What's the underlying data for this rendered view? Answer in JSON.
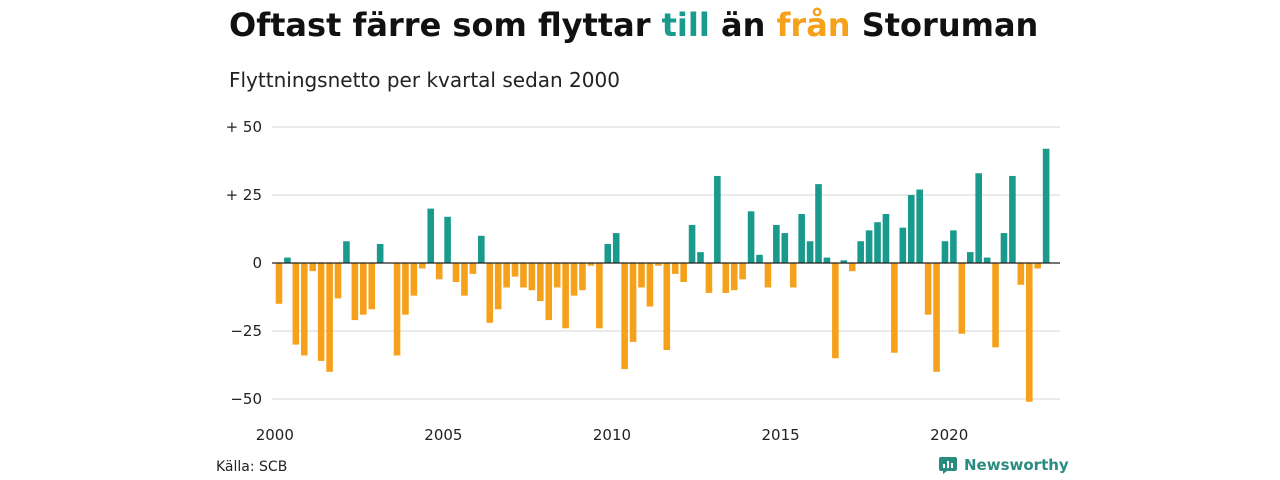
{
  "title": {
    "part1": "Oftast färre som flyttar ",
    "word_in": "till",
    "part2": " än ",
    "word_out": "från",
    "part3": " Storuman"
  },
  "subtitle": "Flyttningsnetto per kvartal sedan 2000",
  "source": "Källa: SCB",
  "brand": {
    "name": "Newsworthy",
    "icon": "newsworthy-logo-icon"
  },
  "colors": {
    "positive": "#1a9a8c",
    "negative": "#f5a11c",
    "brand": "#2a8c80"
  },
  "chart_data": {
    "type": "bar",
    "x_start": "2000 Q1",
    "ylim": [
      -50,
      50
    ],
    "grid": true,
    "yticks": [
      {
        "value": 50,
        "label": "+ 50"
      },
      {
        "value": 25,
        "label": "+ 25"
      },
      {
        "value": 0,
        "label": "0"
      },
      {
        "value": -25,
        "label": "−25"
      },
      {
        "value": -50,
        "label": "−50"
      }
    ],
    "xticks": [
      "2000",
      "2005",
      "2010",
      "2015",
      "2020"
    ],
    "xlabel": "",
    "ylabel": "",
    "values": [
      -15,
      2,
      -30,
      -34,
      -3,
      -36,
      -40,
      -13,
      8,
      -21,
      -19,
      -17,
      7,
      0,
      -34,
      -19,
      -12,
      -2,
      20,
      -6,
      17,
      -7,
      -12,
      -4,
      10,
      -22,
      -17,
      -9,
      -5,
      -9,
      -10,
      -14,
      -21,
      -9,
      -24,
      -12,
      -10,
      -1,
      -24,
      7,
      11,
      -39,
      -29,
      -9,
      -16,
      -1,
      -32,
      -4,
      -7,
      14,
      4,
      -11,
      32,
      -11,
      -10,
      -6,
      19,
      3,
      -9,
      14,
      11,
      -9,
      18,
      8,
      29,
      2,
      -35,
      1,
      -3,
      8,
      12,
      15,
      18,
      -33,
      13,
      25,
      27,
      -19,
      -40,
      8,
      12,
      -26,
      4,
      33,
      2,
      -31,
      11,
      32,
      -8,
      -51,
      -2,
      42
    ]
  }
}
